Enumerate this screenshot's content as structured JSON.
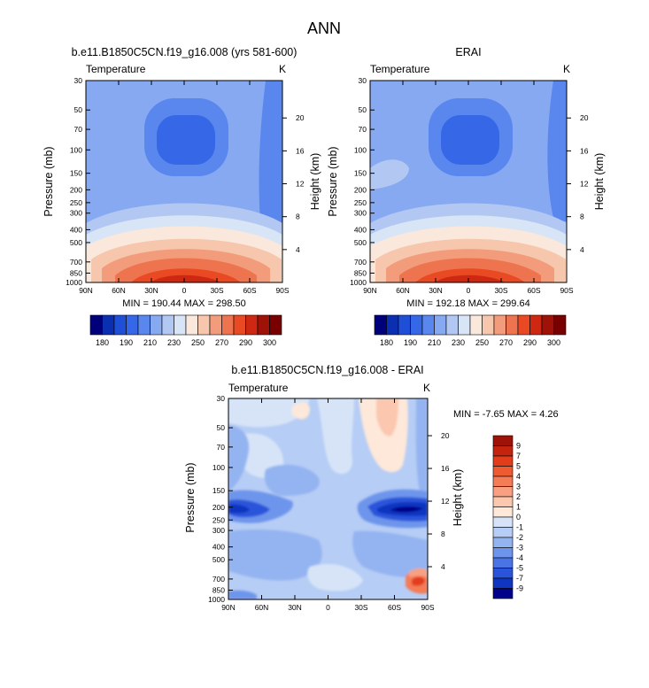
{
  "main_title": "ANN",
  "chart_data": [
    {
      "type": "heatmap",
      "title": "b.e11.B1850C5CN.f19_g16.008 (yrs 581-600)",
      "left_label": "Temperature",
      "units": "K",
      "ylabel": "Pressure (mb)",
      "ylabel_right": "Height (km)",
      "x_ticks": [
        "90N",
        "60N",
        "30N",
        "0",
        "30S",
        "60S",
        "90S"
      ],
      "y_ticks": [
        "30",
        "50",
        "70",
        "100",
        "150",
        "200",
        "250",
        "300",
        "400",
        "500",
        "700",
        "850",
        "1000"
      ],
      "y_ticks_right": [
        "20",
        "16",
        "12",
        "8",
        "4"
      ],
      "stats": "MIN = 190.44  MAX = 298.50",
      "colorbar": {
        "colors": [
          "#00007a",
          "#0a2fb0",
          "#1e4fd6",
          "#3567e6",
          "#5a87ee",
          "#87a9f2",
          "#b2c8f3",
          "#d8e5f6",
          "#fbe8dc",
          "#f6c6ad",
          "#f29c7c",
          "#ee744f",
          "#e94a24",
          "#cf2812",
          "#9e1208",
          "#780000"
        ],
        "labels": [
          "180",
          "190",
          "210",
          "230",
          "250",
          "270",
          "290",
          "300"
        ]
      }
    },
    {
      "type": "heatmap",
      "title": "ERAI",
      "left_label": "Temperature",
      "units": "K",
      "ylabel": "Pressure (mb)",
      "ylabel_right": "Height (km)",
      "x_ticks": [
        "90N",
        "60N",
        "30N",
        "0",
        "30S",
        "60S",
        "90S"
      ],
      "y_ticks": [
        "30",
        "50",
        "70",
        "100",
        "150",
        "200",
        "250",
        "300",
        "400",
        "500",
        "700",
        "850",
        "1000"
      ],
      "y_ticks_right": [
        "20",
        "16",
        "12",
        "8",
        "4"
      ],
      "stats": "MIN = 192.18  MAX = 299.64",
      "colorbar": {
        "colors": [
          "#00007a",
          "#0a2fb0",
          "#1e4fd6",
          "#3567e6",
          "#5a87ee",
          "#87a9f2",
          "#b2c8f3",
          "#d8e5f6",
          "#fbe8dc",
          "#f6c6ad",
          "#f29c7c",
          "#ee744f",
          "#e94a24",
          "#cf2812",
          "#9e1208",
          "#780000"
        ],
        "labels": [
          "180",
          "190",
          "210",
          "230",
          "250",
          "270",
          "290",
          "300"
        ]
      }
    },
    {
      "type": "heatmap",
      "title": "b.e11.B1850C5CN.f19_g16.008 - ERAI",
      "left_label": "Temperature",
      "units": "K",
      "ylabel": "Pressure (mb)",
      "ylabel_right": "Height (km)",
      "x_ticks": [
        "90N",
        "60N",
        "30N",
        "0",
        "30S",
        "60S",
        "90S"
      ],
      "y_ticks": [
        "30",
        "50",
        "70",
        "100",
        "150",
        "200",
        "250",
        "300",
        "400",
        "500",
        "700",
        "850",
        "1000"
      ],
      "y_ticks_right": [
        "20",
        "16",
        "12",
        "8",
        "4"
      ],
      "stats": "MIN = -7.65  MAX =  4.26",
      "colorbar": {
        "colors": [
          "#9e1208",
          "#c4240e",
          "#e23d1b",
          "#ee5b33",
          "#f47c56",
          "#f8a081",
          "#fbc7ae",
          "#fde8da",
          "#d7e4f8",
          "#b6cdf5",
          "#94b4f1",
          "#6e95ec",
          "#4a74e5",
          "#2a55da",
          "#1035c0",
          "#00008a"
        ],
        "labels": [
          "9",
          "7",
          "5",
          "4",
          "3",
          "2",
          "1",
          "0",
          "-1",
          "-2",
          "-3",
          "-4",
          "-5",
          "-7",
          "-9"
        ]
      }
    }
  ]
}
